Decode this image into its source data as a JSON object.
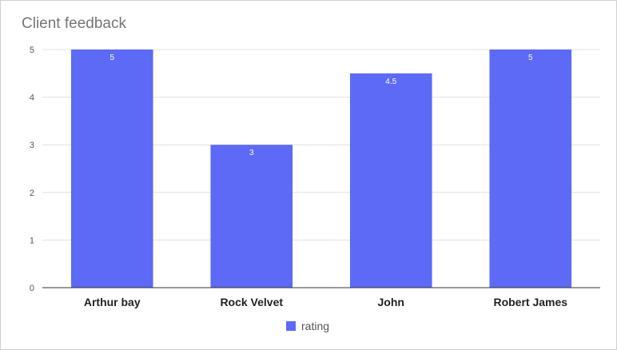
{
  "chart_data": {
    "type": "bar",
    "title": "Client feedback",
    "categories": [
      "Arthur bay",
      "Rock Velvet",
      "John",
      "Robert James"
    ],
    "series": [
      {
        "name": "rating",
        "values": [
          5,
          3,
          4.5,
          5
        ],
        "color": "#5c6af5"
      }
    ],
    "data_labels": [
      "5",
      "3",
      "4.5",
      "5"
    ],
    "yticks": [
      "0",
      "1",
      "2",
      "3",
      "4",
      "5"
    ],
    "ylim": [
      0,
      5
    ],
    "xlabel": "",
    "ylabel": "",
    "grid": true,
    "legend_position": "bottom"
  }
}
